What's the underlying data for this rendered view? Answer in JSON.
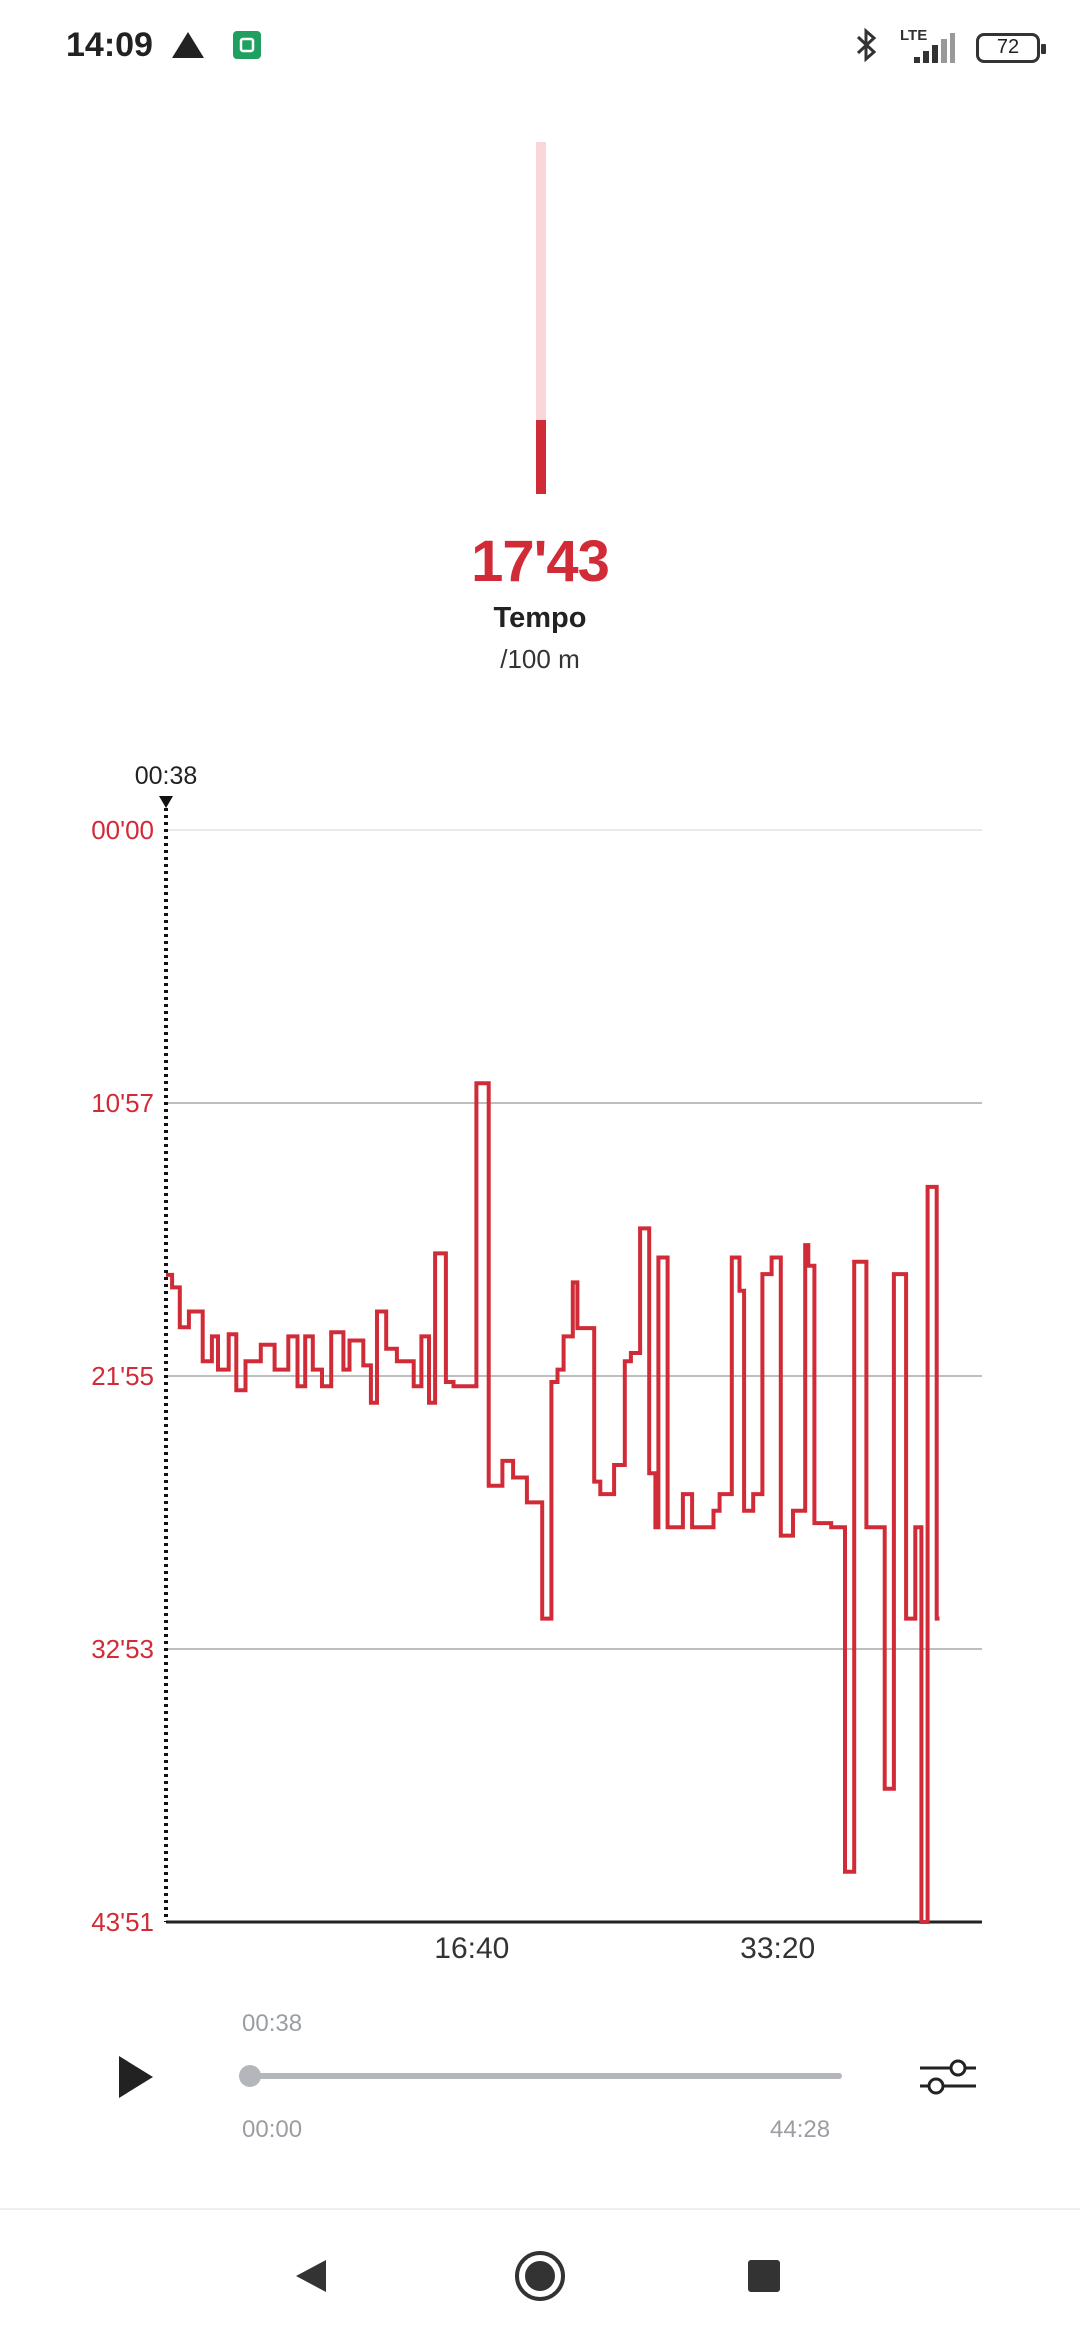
{
  "status_bar": {
    "time": "14:09",
    "network_label": "LTE",
    "battery": "72",
    "icons": [
      "warning-triangle-icon",
      "mi-app-icon",
      "bluetooth-icon",
      "signal-icon",
      "battery-icon"
    ]
  },
  "gauge": {
    "level": 0.21,
    "track_color": "#f8d6da",
    "fill_color": "#d22b38"
  },
  "readout": {
    "value": "17'43",
    "label": "Tempo",
    "unit": "/100 m"
  },
  "chart_data": {
    "type": "line",
    "cursor_label": "00:38",
    "y_axis": {
      "ticks": [
        "00'00",
        "10'57",
        "21'55",
        "32'53",
        "43'51"
      ],
      "min_seconds": 0,
      "max_seconds": 2631,
      "inverted": true
    },
    "x_axis": {
      "ticks": [
        "16:40",
        "33:20"
      ],
      "tick_seconds": [
        1000,
        2000
      ],
      "min_seconds": 0,
      "max_seconds": 2668
    },
    "grid": true,
    "series_color": "#d22b38",
    "series": [
      {
        "name": "",
        "points": [
          [
            0,
            1072
          ],
          [
            20,
            1072
          ],
          [
            20,
            1102
          ],
          [
            45,
            1102
          ],
          [
            45,
            1198
          ],
          [
            75,
            1198
          ],
          [
            75,
            1160
          ],
          [
            120,
            1160
          ],
          [
            120,
            1280
          ],
          [
            150,
            1280
          ],
          [
            150,
            1220
          ],
          [
            170,
            1220
          ],
          [
            170,
            1300
          ],
          [
            205,
            1300
          ],
          [
            205,
            1215
          ],
          [
            230,
            1215
          ],
          [
            230,
            1350
          ],
          [
            260,
            1350
          ],
          [
            260,
            1280
          ],
          [
            310,
            1280
          ],
          [
            310,
            1240
          ],
          [
            355,
            1240
          ],
          [
            355,
            1300
          ],
          [
            400,
            1300
          ],
          [
            400,
            1220
          ],
          [
            430,
            1220
          ],
          [
            430,
            1340
          ],
          [
            455,
            1340
          ],
          [
            455,
            1220
          ],
          [
            480,
            1220
          ],
          [
            480,
            1300
          ],
          [
            510,
            1300
          ],
          [
            510,
            1340
          ],
          [
            540,
            1340
          ],
          [
            540,
            1210
          ],
          [
            580,
            1210
          ],
          [
            580,
            1300
          ],
          [
            600,
            1300
          ],
          [
            600,
            1230
          ],
          [
            645,
            1230
          ],
          [
            645,
            1290
          ],
          [
            670,
            1290
          ],
          [
            670,
            1380
          ],
          [
            690,
            1380
          ],
          [
            690,
            1160
          ],
          [
            720,
            1160
          ],
          [
            720,
            1250
          ],
          [
            755,
            1250
          ],
          [
            755,
            1280
          ],
          [
            810,
            1280
          ],
          [
            810,
            1340
          ],
          [
            835,
            1340
          ],
          [
            835,
            1220
          ],
          [
            860,
            1220
          ],
          [
            860,
            1380
          ],
          [
            880,
            1380
          ],
          [
            880,
            1020
          ],
          [
            915,
            1020
          ],
          [
            915,
            1330
          ],
          [
            940,
            1330
          ],
          [
            940,
            1340
          ],
          [
            1015,
            1340
          ],
          [
            1015,
            610
          ],
          [
            1055,
            610
          ],
          [
            1055,
            1580
          ],
          [
            1100,
            1580
          ],
          [
            1100,
            1520
          ],
          [
            1135,
            1520
          ],
          [
            1135,
            1560
          ],
          [
            1180,
            1560
          ],
          [
            1180,
            1620
          ],
          [
            1230,
            1620
          ],
          [
            1230,
            1900
          ],
          [
            1260,
            1900
          ],
          [
            1260,
            1330
          ],
          [
            1280,
            1330
          ],
          [
            1280,
            1300
          ],
          [
            1300,
            1300
          ],
          [
            1300,
            1220
          ],
          [
            1330,
            1220
          ],
          [
            1330,
            1090
          ],
          [
            1345,
            1090
          ],
          [
            1345,
            1200
          ],
          [
            1400,
            1200
          ],
          [
            1400,
            1570
          ],
          [
            1420,
            1570
          ],
          [
            1420,
            1600
          ],
          [
            1465,
            1600
          ],
          [
            1465,
            1530
          ],
          [
            1500,
            1530
          ],
          [
            1500,
            1280
          ],
          [
            1520,
            1280
          ],
          [
            1520,
            1260
          ],
          [
            1550,
            1260
          ],
          [
            1550,
            960
          ],
          [
            1580,
            960
          ],
          [
            1580,
            1550
          ],
          [
            1600,
            1550
          ],
          [
            1600,
            1680
          ],
          [
            1610,
            1680
          ],
          [
            1610,
            1030
          ],
          [
            1640,
            1030
          ],
          [
            1640,
            1680
          ],
          [
            1690,
            1680
          ],
          [
            1690,
            1600
          ],
          [
            1720,
            1600
          ],
          [
            1720,
            1680
          ],
          [
            1790,
            1680
          ],
          [
            1790,
            1640
          ],
          [
            1810,
            1640
          ],
          [
            1810,
            1600
          ],
          [
            1850,
            1600
          ],
          [
            1850,
            1030
          ],
          [
            1875,
            1030
          ],
          [
            1875,
            1110
          ],
          [
            1890,
            1110
          ],
          [
            1890,
            1640
          ],
          [
            1920,
            1640
          ],
          [
            1920,
            1600
          ],
          [
            1950,
            1600
          ],
          [
            1950,
            1070
          ],
          [
            1980,
            1070
          ],
          [
            1980,
            1030
          ],
          [
            2010,
            1030
          ],
          [
            2010,
            1700
          ],
          [
            2050,
            1700
          ],
          [
            2050,
            1640
          ],
          [
            2090,
            1640
          ],
          [
            2090,
            1000
          ],
          [
            2100,
            1000
          ],
          [
            2100,
            1050
          ],
          [
            2120,
            1050
          ],
          [
            2120,
            1670
          ],
          [
            2175,
            1670
          ],
          [
            2175,
            1680
          ],
          [
            2220,
            1680
          ],
          [
            2220,
            2510
          ],
          [
            2250,
            2510
          ],
          [
            2250,
            1040
          ],
          [
            2290,
            1040
          ],
          [
            2290,
            1680
          ],
          [
            2350,
            1680
          ],
          [
            2350,
            2310
          ],
          [
            2380,
            2310
          ],
          [
            2380,
            1070
          ],
          [
            2420,
            1070
          ],
          [
            2420,
            1900
          ],
          [
            2450,
            1900
          ],
          [
            2450,
            1680
          ],
          [
            2470,
            1680
          ],
          [
            2470,
            2631
          ],
          [
            2490,
            2631
          ],
          [
            2490,
            860
          ],
          [
            2520,
            860
          ],
          [
            2520,
            1900
          ],
          [
            2529,
            1900
          ]
        ]
      }
    ]
  },
  "player": {
    "current_time": "00:38",
    "start_time": "00:00",
    "end_time": "44:28",
    "progress": 0.0
  },
  "nav": {
    "buttons": [
      "back-icon",
      "home-icon",
      "recents-icon"
    ]
  }
}
